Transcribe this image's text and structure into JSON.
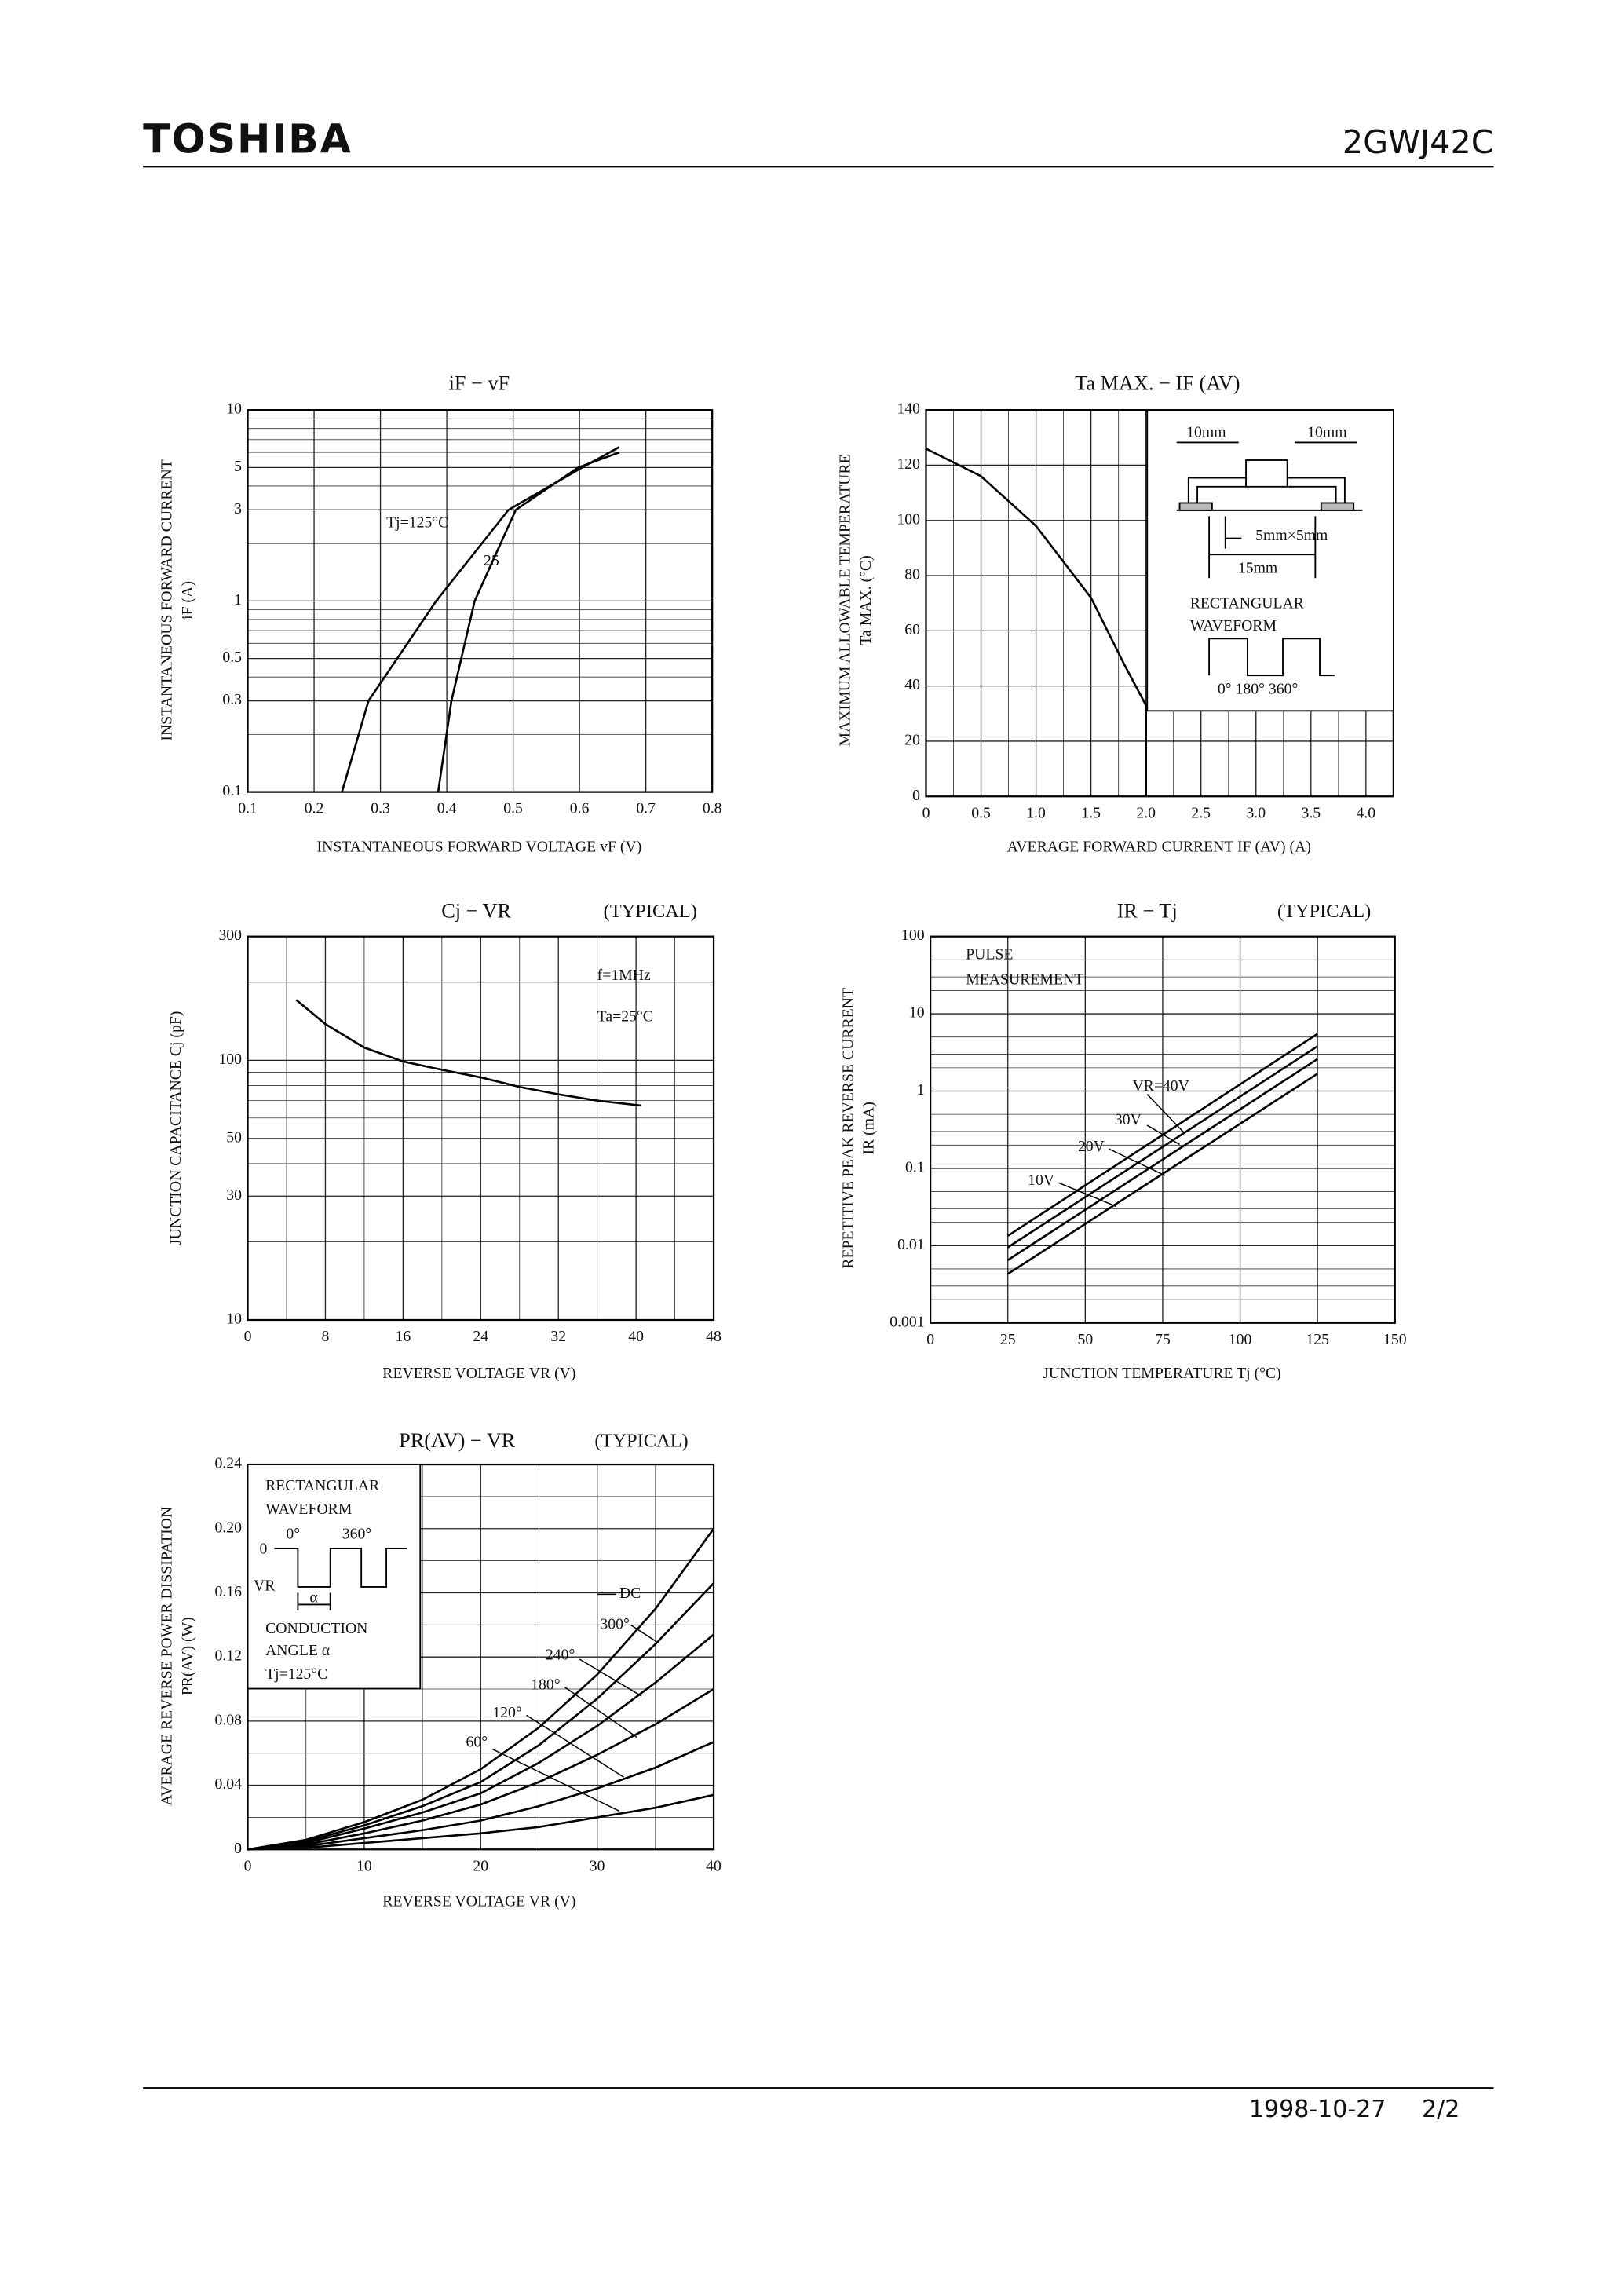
{
  "header": {
    "brand": "TOSHIBA",
    "part": "2GWJ42C"
  },
  "footer": {
    "date": "1998-10-27",
    "page": "2/2"
  },
  "chart_data": [
    {
      "type": "line",
      "title": "iF − vF",
      "x_label": "INSTANTANEOUS FORWARD VOLTAGE   vF   (V)",
      "y_label": "INSTANTANEOUS FORWARD CURRENT",
      "y_unit": "iF   (A)",
      "xlim": [
        0.1,
        0.8
      ],
      "xticks": [
        0.1,
        0.2,
        0.3,
        0.4,
        0.5,
        0.6,
        0.7,
        0.8
      ],
      "ylim": [
        0.1,
        10
      ],
      "yticks": [
        0.1,
        0.3,
        0.5,
        1,
        3,
        5,
        10
      ],
      "log_y": true,
      "grid": true,
      "y_minor_grid": [
        0.2,
        0.4,
        0.6,
        0.7,
        0.8,
        0.9,
        2,
        4,
        6,
        7,
        8,
        9
      ],
      "series": [
        {
          "name": "Tj=125°C",
          "color": "#000000",
          "x": [
            0.242,
            0.282,
            0.384,
            0.493,
            0.604,
            0.66
          ],
          "values": [
            0.1,
            0.3,
            1,
            3,
            5,
            6.4
          ]
        },
        {
          "name": "25",
          "color": "#000000",
          "x": [
            0.387,
            0.407,
            0.442,
            0.504,
            0.598,
            0.66
          ],
          "values": [
            0.1,
            0.3,
            1,
            3,
            5,
            6.0
          ]
        }
      ]
    },
    {
      "type": "line",
      "title": "Ta MAX. − IF (AV)",
      "x_label": "AVERAGE FORWARD CURRENT   IF (AV)   (A)",
      "y_label": "MAXIMUM ALLOWABLE TEMPERATURE",
      "y_unit": "Ta MAX.  (°C)",
      "xlim": [
        0,
        4.25
      ],
      "xticks": [
        0,
        0.5,
        {
          "value": 1,
          "label": "1.0"
        },
        1.5,
        {
          "value": 2,
          "label": "2.0"
        },
        2.5,
        {
          "value": 3,
          "label": "3.0"
        },
        3.5,
        {
          "value": 4,
          "label": "4.0"
        }
      ],
      "ylim": [
        0,
        140
      ],
      "yticks": [
        0,
        20,
        40,
        60,
        80,
        100,
        120,
        140
      ],
      "grid": true,
      "x_minor_grid": [
        0.25,
        0.75,
        1.25,
        1.75,
        2.25,
        2.75,
        3.25,
        3.75
      ],
      "x": [
        0,
        0.5,
        1.0,
        1.5,
        1.8,
        2.0,
        2.0
      ],
      "values": [
        126,
        116,
        98,
        72,
        48,
        33,
        0
      ],
      "color": "#000000",
      "annotations": [
        "10mm",
        "10mm",
        "5mm×5mm",
        "15mm",
        "RECTANGULAR",
        "WAVEFORM",
        "0° 180° 360°"
      ]
    },
    {
      "type": "line",
      "title": "Cj − VR",
      "subtitle": "(TYPICAL)",
      "x_label": "REVERSE VOLTAGE   VR   (V)",
      "y_label": "JUNCTION CAPACITANCE   Cj   (pF)",
      "xlim": [
        0,
        48
      ],
      "xticks": [
        0,
        8,
        16,
        24,
        32,
        40,
        48
      ],
      "ylim": [
        10,
        300
      ],
      "yticks": [
        10,
        30,
        50,
        100,
        300
      ],
      "log_y": true,
      "grid": true,
      "x_minor_grid": [
        4,
        12,
        20,
        28,
        36,
        44
      ],
      "y_minor_grid": [
        20,
        40,
        60,
        70,
        80,
        90,
        200
      ],
      "x": [
        5,
        8,
        12,
        16,
        20,
        24,
        28,
        32,
        36,
        40.5
      ],
      "values": [
        171,
        138,
        112,
        99,
        92,
        86,
        79,
        74,
        70,
        67
      ],
      "color": "#000000",
      "annotations": [
        "f=1MHz",
        "Ta=25°C"
      ]
    },
    {
      "type": "line",
      "title": "IR − Tj",
      "subtitle": "(TYPICAL)",
      "x_label": "JUNCTION TEMPERATURE   Tj   (°C)",
      "y_label": "REPETITIVE PEAK REVERSE CURRENT",
      "y_unit": "IR  (mA)",
      "xlim": [
        0,
        150
      ],
      "xticks": [
        0,
        25,
        50,
        75,
        100,
        125,
        150
      ],
      "ylim": [
        0.001,
        100
      ],
      "yticks": [
        0.001,
        0.01,
        0.1,
        1,
        10,
        100
      ],
      "log_y": true,
      "grid": true,
      "y_minor_grid": [
        0.002,
        0.003,
        0.005,
        0.02,
        0.03,
        0.05,
        0.2,
        0.3,
        0.5,
        2,
        3,
        5,
        20,
        30,
        50
      ],
      "x": [
        25,
        125
      ],
      "series": [
        {
          "name": "VR=40V",
          "color": "#000000",
          "values": [
            0.0134,
            5.5
          ]
        },
        {
          "name": "30V",
          "color": "#000000",
          "values": [
            0.0095,
            3.8
          ]
        },
        {
          "name": "20V",
          "color": "#000000",
          "values": [
            0.0065,
            2.6
          ]
        },
        {
          "name": "10V",
          "color": "#000000",
          "values": [
            0.0043,
            1.68
          ]
        }
      ],
      "annotations": [
        "PULSE",
        "MEASUREMENT"
      ]
    },
    {
      "type": "line",
      "title": "PR(AV) − VR",
      "subtitle": "(TYPICAL)",
      "x_label": "REVERSE VOLTAGE   VR   (V)",
      "y_label": "AVERAGE REVERSE POWER DISSIPATION",
      "y_unit": "PR(AV)  (W)",
      "xlim": [
        0,
        40
      ],
      "xticks": [
        0,
        10,
        20,
        30,
        40
      ],
      "ylim": [
        0,
        0.24
      ],
      "yticks": [
        0,
        0.04,
        0.08,
        0.12,
        0.16,
        {
          "value": 0.2,
          "label": "0.20"
        },
        0.24
      ],
      "grid": true,
      "x_minor_grid": [
        5,
        15,
        25,
        35
      ],
      "y_minor_grid": [
        0.02,
        0.06,
        0.1,
        0.14,
        0.18,
        0.22
      ],
      "x": [
        0,
        5,
        10,
        15,
        20,
        25,
        30,
        35,
        40
      ],
      "series": [
        {
          "name": "DC",
          "color": "#000000",
          "values": [
            0,
            0.006,
            0.017,
            0.031,
            0.05,
            0.076,
            0.109,
            0.15,
            0.2
          ]
        },
        {
          "name": "300°",
          "color": "#000000",
          "values": [
            0,
            0.005,
            0.015,
            0.027,
            0.042,
            0.065,
            0.094,
            0.128,
            0.166
          ]
        },
        {
          "name": "240°",
          "color": "#000000",
          "values": [
            0,
            0.004,
            0.013,
            0.023,
            0.035,
            0.054,
            0.077,
            0.104,
            0.134
          ]
        },
        {
          "name": "180°",
          "color": "#000000",
          "values": [
            0,
            0.003,
            0.01,
            0.018,
            0.028,
            0.042,
            0.059,
            0.078,
            0.1
          ]
        },
        {
          "name": "120°",
          "color": "#000000",
          "values": [
            0,
            0.002,
            0.007,
            0.012,
            0.018,
            0.027,
            0.038,
            0.051,
            0.067
          ]
        },
        {
          "name": "60°",
          "color": "#000000",
          "values": [
            0,
            0.001,
            0.004,
            0.007,
            0.01,
            0.014,
            0.02,
            0.026,
            0.034
          ]
        }
      ],
      "annotations": [
        "RECTANGULAR",
        "WAVEFORM",
        "0",
        "0°",
        "360°",
        "VR",
        "α",
        "CONDUCTION",
        "ANGLE α",
        "Tj=125°C"
      ]
    }
  ]
}
